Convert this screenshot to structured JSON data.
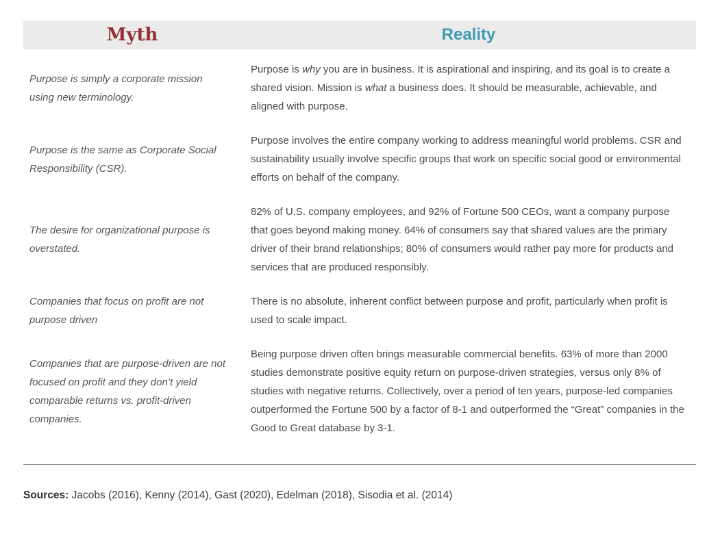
{
  "header": {
    "myth": "Myth",
    "reality": "Reality"
  },
  "colors": {
    "myth_heading": "#942f33",
    "reality_heading": "#3f9ab5",
    "header_bg": "#ebebeb"
  },
  "rows": [
    {
      "myth": "Purpose is simply a corporate mission using new terminology.",
      "reality": [
        {
          "text": "Purpose is "
        },
        {
          "text": "why",
          "italic": true
        },
        {
          "text": " you are in business. It is aspirational and inspiring, and its goal is to create a shared vision. Mission is "
        },
        {
          "text": "what",
          "italic": true
        },
        {
          "text": " a business does. It should be measurable, achievable, and aligned with purpose."
        }
      ]
    },
    {
      "myth": "Purpose is the same as Corporate Social Responsibility (CSR).",
      "reality": [
        {
          "text": "Purpose involves the entire company working to address meaningful world problems. CSR and sustainability usually involve specific groups that work on specific social good or environmental efforts on behalf of the company."
        }
      ]
    },
    {
      "myth": "The desire for organizational purpose is overstated.",
      "reality": [
        {
          "text": "82% of U.S. company employees, and 92% of Fortune 500 CEOs, want a company purpose that goes beyond making money. 64% of consumers say that shared values are the primary driver of their brand relationships; 80% of consumers would rather pay more for products and services that are produced responsibly."
        }
      ]
    },
    {
      "myth": "Companies that focus on profit are not purpose driven",
      "reality": [
        {
          "text": "There is no absolute, inherent conflict between purpose and profit, particularly when profit is used to scale impact."
        }
      ]
    },
    {
      "myth": "Companies that are purpose-driven are not focused on profit and they don’t yield comparable returns vs. profit-driven companies.",
      "reality": [
        {
          "text": "Being purpose driven often brings measurable commercial benefits. 63% of more than 2000 studies demonstrate positive equity return on purpose-driven strategies, versus only 8% of studies with negative returns. Collectively, over a period of ten years, purpose-led companies outperformed the Fortune 500 by a factor of 8-1 and outperformed the “Great” companies in the Good to Great database by 3-1."
        }
      ]
    }
  ],
  "footer": {
    "sources_label": "Sources:",
    "sources_text": " Jacobs (2016), Kenny (2014), Gast (2020), Edelman (2018), Sisodia et al. (2014)"
  }
}
